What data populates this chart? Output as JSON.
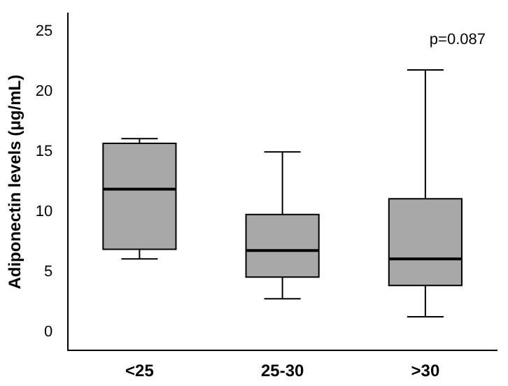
{
  "chart_data": {
    "type": "box",
    "ylabel": "Adiponectin levels (μg/mL)",
    "categories": [
      "<25",
      "25-30",
      ">30"
    ],
    "boxes": [
      {
        "low": 6.1,
        "q1": 6.9,
        "median": 11.9,
        "q3": 15.7,
        "high": 16.1
      },
      {
        "low": 2.8,
        "q1": 4.6,
        "median": 6.8,
        "q3": 9.8,
        "high": 15
      },
      {
        "low": 1.3,
        "q1": 3.9,
        "median": 6.1,
        "q3": 11.1,
        "high": 21.8
      }
    ],
    "color": "#a8a8a8",
    "ylim": [
      -1.5,
      26.5
    ],
    "yticks": [
      0,
      5,
      10,
      15,
      20,
      25
    ],
    "grid": false,
    "legend": false,
    "annotations": [
      "p=0.087"
    ]
  }
}
